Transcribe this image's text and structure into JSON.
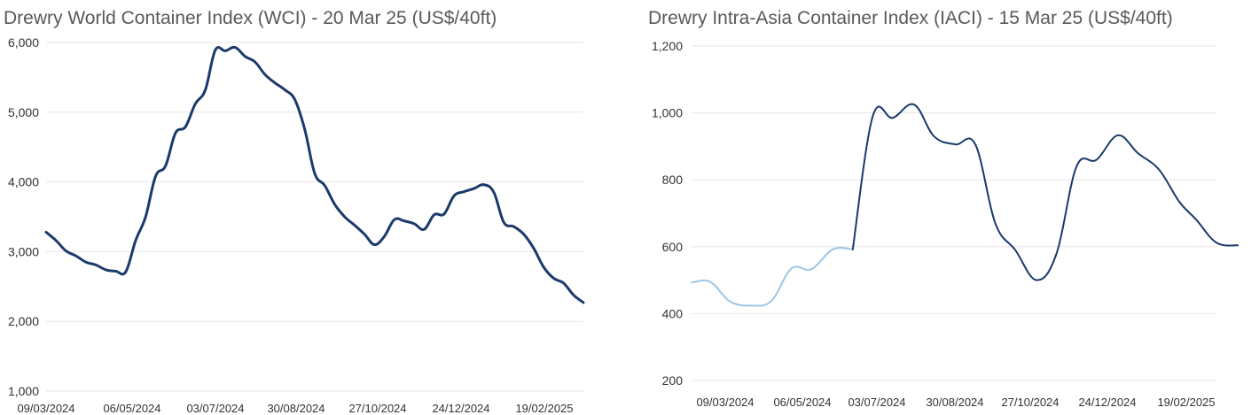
{
  "chart_data": [
    {
      "type": "line",
      "title": "Drewry World Container Index (WCI) - 20 Mar 25 (US$/40ft)",
      "xlabel": "",
      "ylabel": "",
      "ylim": [
        1000,
        6000
      ],
      "yticks": [
        "1,000",
        "2,000",
        "3,000",
        "4,000",
        "5,000",
        "6,000"
      ],
      "ytick_values": [
        1000,
        2000,
        3000,
        4000,
        5000,
        6000
      ],
      "xticks": [
        "09/03/2024",
        "06/05/2024",
        "03/07/2024",
        "30/08/2024",
        "27/10/2024",
        "24/12/2024",
        "19/02/2025"
      ],
      "xlim": [
        "2024-03-07",
        "2025-03-20"
      ],
      "grid": true,
      "line_color": "#1b3a6b",
      "series": [
        {
          "color": "#1b3a6b",
          "points": [
            [
              "2024-03-07",
              3280
            ],
            [
              "2024-03-14",
              3160
            ],
            [
              "2024-03-21",
              3010
            ],
            [
              "2024-03-28",
              2940
            ],
            [
              "2024-04-04",
              2850
            ],
            [
              "2024-04-11",
              2810
            ],
            [
              "2024-04-18",
              2740
            ],
            [
              "2024-04-25",
              2720
            ],
            [
              "2024-05-02",
              2710
            ],
            [
              "2024-05-09",
              3160
            ],
            [
              "2024-05-16",
              3500
            ],
            [
              "2024-05-23",
              4080
            ],
            [
              "2024-05-30",
              4230
            ],
            [
              "2024-06-06",
              4700
            ],
            [
              "2024-06-13",
              4790
            ],
            [
              "2024-06-20",
              5120
            ],
            [
              "2024-06-27",
              5320
            ],
            [
              "2024-07-04",
              5890
            ],
            [
              "2024-07-11",
              5880
            ],
            [
              "2024-07-18",
              5930
            ],
            [
              "2024-07-25",
              5800
            ],
            [
              "2024-08-01",
              5720
            ],
            [
              "2024-08-08",
              5540
            ],
            [
              "2024-08-15",
              5420
            ],
            [
              "2024-08-22",
              5320
            ],
            [
              "2024-08-29",
              5180
            ],
            [
              "2024-09-05",
              4750
            ],
            [
              "2024-09-12",
              4120
            ],
            [
              "2024-09-19",
              3950
            ],
            [
              "2024-09-26",
              3680
            ],
            [
              "2024-10-03",
              3500
            ],
            [
              "2024-10-10",
              3380
            ],
            [
              "2024-10-17",
              3250
            ],
            [
              "2024-10-24",
              3100
            ],
            [
              "2024-10-31",
              3220
            ],
            [
              "2024-11-07",
              3460
            ],
            [
              "2024-11-14",
              3440
            ],
            [
              "2024-11-21",
              3400
            ],
            [
              "2024-11-28",
              3320
            ],
            [
              "2024-12-05",
              3530
            ],
            [
              "2024-12-12",
              3540
            ],
            [
              "2024-12-19",
              3800
            ],
            [
              "2024-12-26",
              3860
            ],
            [
              "2025-01-02",
              3905
            ],
            [
              "2025-01-09",
              3960
            ],
            [
              "2025-01-16",
              3850
            ],
            [
              "2025-01-23",
              3420
            ],
            [
              "2025-01-30",
              3360
            ],
            [
              "2025-02-06",
              3250
            ],
            [
              "2025-02-13",
              3050
            ],
            [
              "2025-02-20",
              2780
            ],
            [
              "2025-02-27",
              2620
            ],
            [
              "2025-03-06",
              2550
            ],
            [
              "2025-03-13",
              2380
            ],
            [
              "2025-03-20",
              2270
            ]
          ]
        }
      ]
    },
    {
      "type": "line",
      "title": "Drewry Intra-Asia Container Index (IACI) - 15 Mar 25 (US$/40ft)",
      "xlabel": "",
      "ylabel": "",
      "ylim": [
        200,
        1200
      ],
      "yticks": [
        "200",
        "400",
        "600",
        "800",
        "1,000",
        "1,200"
      ],
      "ytick_values": [
        200,
        400,
        600,
        800,
        1000,
        1200
      ],
      "xticks": [
        "09/03/2024",
        "06/05/2024",
        "03/07/2024",
        "30/08/2024",
        "27/10/2024",
        "24/12/2024",
        "19/02/2025"
      ],
      "xlim": [
        "2024-02-15",
        "2025-03-15"
      ],
      "grid": true,
      "series": [
        {
          "color": "#9dc6e6",
          "points": [
            [
              "2024-02-15",
              493
            ],
            [
              "2024-02-29",
              495
            ],
            [
              "2024-03-15",
              436
            ],
            [
              "2024-03-31",
              424
            ],
            [
              "2024-04-15",
              438
            ],
            [
              "2024-04-30",
              535
            ],
            [
              "2024-05-15",
              533
            ],
            [
              "2024-05-31",
              592
            ],
            [
              "2024-06-15",
              592
            ]
          ]
        },
        {
          "color": "#1b3a6b",
          "points": [
            [
              "2024-06-15",
              592
            ],
            [
              "2024-06-30",
              990
            ],
            [
              "2024-07-15",
              985
            ],
            [
              "2024-07-31",
              1025
            ],
            [
              "2024-08-15",
              930
            ],
            [
              "2024-08-31",
              906
            ],
            [
              "2024-09-15",
              906
            ],
            [
              "2024-09-30",
              670
            ],
            [
              "2024-10-15",
              590
            ],
            [
              "2024-10-31",
              500
            ],
            [
              "2024-11-15",
              580
            ],
            [
              "2024-11-30",
              840
            ],
            [
              "2024-12-15",
              860
            ],
            [
              "2024-12-31",
              933
            ],
            [
              "2025-01-15",
              880
            ],
            [
              "2025-01-31",
              830
            ],
            [
              "2025-02-15",
              735
            ],
            [
              "2025-02-28",
              680
            ],
            [
              "2025-03-15",
              612
            ],
            [
              "2025-03-31",
              604
            ]
          ]
        }
      ]
    }
  ]
}
